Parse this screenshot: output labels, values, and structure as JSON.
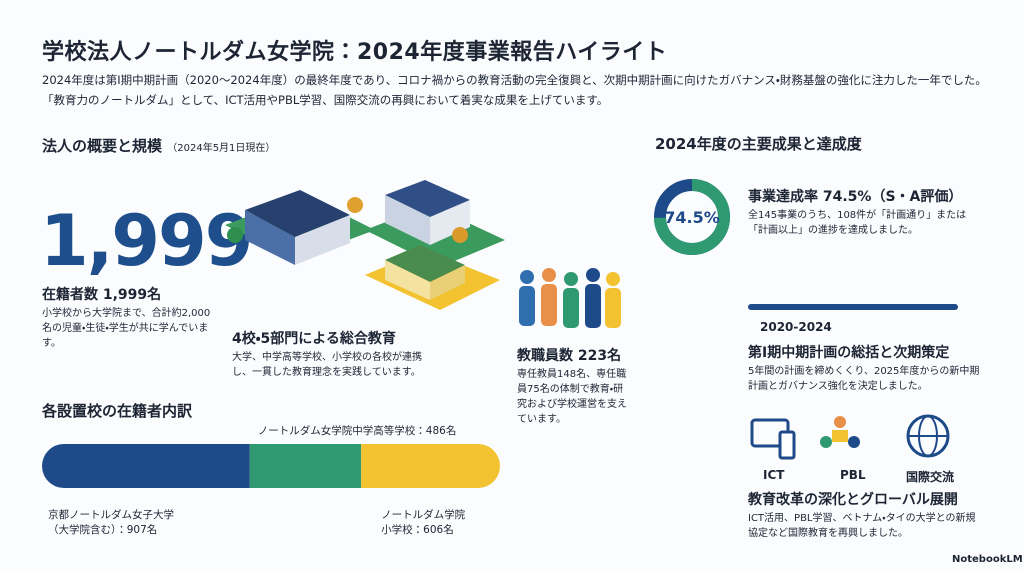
{
  "header": {
    "title": "学校法人ノートルダム女学院：2024年度事業報告ハイライト",
    "description": "2024年度は第Ⅰ期中期計画（2020〜2024年度）の最終年度であり、コロナ禍からの教育活動の完全復興と、次期中期計画に向けたガバナンス・財務基盤の強化に注力した一年でした。　「教育力のノートルダム」として、ICT活用やPBL学習、国際交流の再興において着実な成果を上げています。"
  },
  "overview": {
    "title": "法人の概要と規模",
    "note": "（2024年5月1日現在）"
  },
  "students": {
    "big_number": "1,999",
    "title": "在籍者数 1,999名",
    "text": "小学校から大学院まで、合計約2,000名の児童・生徒・学生が共に学んでいます。"
  },
  "schools": {
    "title": "4校・5部門による総合教育",
    "text": "大学、中学高等学校、小学校の各校が連携し、一貫した教育理念を実践しています。"
  },
  "staff": {
    "title": "教職員数 223名",
    "text": "専任教員148名、専任職員75名の体制で教育・研究および学校運営を支えています。"
  },
  "breakdown": {
    "title": "各設置校の在籍者内訳",
    "segments": [
      {
        "label": "京都ノートルダム女子大学\n（大学院含む）：907名",
        "value": 907,
        "color": "#1f4a8a"
      },
      {
        "label": "ノートルダム女学院中学高等学校：486名",
        "value": 486,
        "color": "#2f9a72"
      },
      {
        "label": "ノートルダム学院\n小学校：606名",
        "value": 606,
        "color": "#f2c230"
      }
    ]
  },
  "achievements": {
    "title": "2024年度の主要成果と達成度",
    "rate": {
      "value": 74.5,
      "label": "74.5%"
    },
    "rate_title": "事業達成率 74.5%（S・A評価）",
    "rate_text": "全145事業のうち、108件が「計画通り」または「計画以上」の進捗を達成しました。"
  },
  "plan": {
    "period": "2020-2024",
    "title": "第Ⅰ期中期計画の総括と次期策定",
    "text": "5年間の計画を締めくくり、2025年度からの新中期計画とガバナンス強化を決定しました。"
  },
  "reform": {
    "icons": [
      "ICT",
      "PBL",
      "国際交流"
    ],
    "title": "教育改革の深化とグローバル展開",
    "text": "ICT活用、PBL学習、ベトナム・タイの大学との新規協定など国際教育を再興しました。"
  },
  "footer": {
    "brand": "NotebookLM"
  }
}
